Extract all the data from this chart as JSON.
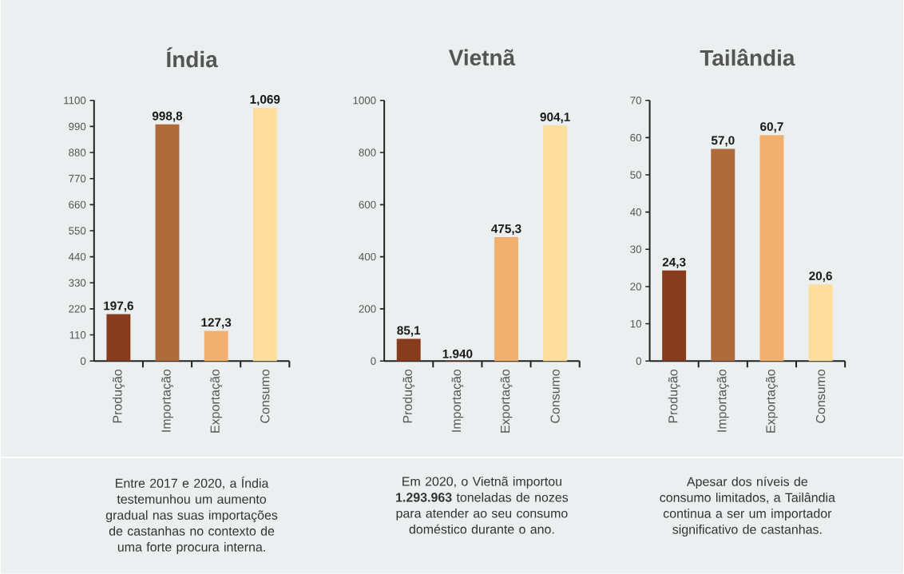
{
  "chart_data": [
    {
      "type": "bar",
      "title": "Índia",
      "categories": [
        "Produção",
        "Importação",
        "Exportação",
        "Consumo"
      ],
      "values": [
        197.6,
        998.8,
        127.3,
        1069
      ],
      "colors": [
        "#873d1d",
        "#ad6b3b",
        "#f1b06e",
        "#fdde9c"
      ],
      "value_labels": [
        "197,6",
        "998,8",
        "127,3",
        "1,069"
      ],
      "ylim": [
        0,
        1100
      ],
      "yticks": [
        0,
        110,
        220,
        330,
        440,
        550,
        660,
        770,
        880,
        990,
        1100
      ],
      "annotations": [
        "Entre 2017 e 2020, a Índia testemunhou um aumento gradual nas suas importações de castanhas no contexto de uma forte procura interna."
      ]
    },
    {
      "type": "bar",
      "title": "Vietnã",
      "categories": [
        "Produção",
        "Importação",
        "Exportação",
        "Consumo"
      ],
      "values": [
        85.1,
        1.94,
        475.3,
        904.1
      ],
      "colors": [
        "#873d1d",
        "#ad6b3b",
        "#f1b06e",
        "#fdde9c"
      ],
      "value_labels": [
        "85,1",
        "1.940",
        "475,3",
        "904,1"
      ],
      "ylim": [
        0,
        1000
      ],
      "yticks": [
        0,
        200,
        400,
        600,
        800,
        1000
      ],
      "annotations": [
        "Em 2020, o Vietnã importou **1.293.963** toneladas de nozes para atender ao seu consumo doméstico durante o ano."
      ]
    },
    {
      "type": "bar",
      "title": "Tailândia",
      "categories": [
        "Produção",
        "Importação",
        "Exportação",
        "Consumo"
      ],
      "values": [
        24.3,
        57.0,
        60.7,
        20.6
      ],
      "colors": [
        "#873d1d",
        "#ad6b3b",
        "#f1b06e",
        "#fdde9c"
      ],
      "value_labels": [
        "24,3",
        "57,0",
        "60,7",
        "20,6"
      ],
      "ylim": [
        0,
        70
      ],
      "yticks": [
        0,
        10,
        20,
        30,
        40,
        50,
        60,
        70
      ],
      "annotations": [
        "Apesar dos níveis de consumo limitados, a Tailândia continua a ser um importador significativo de castanhas."
      ]
    }
  ]
}
